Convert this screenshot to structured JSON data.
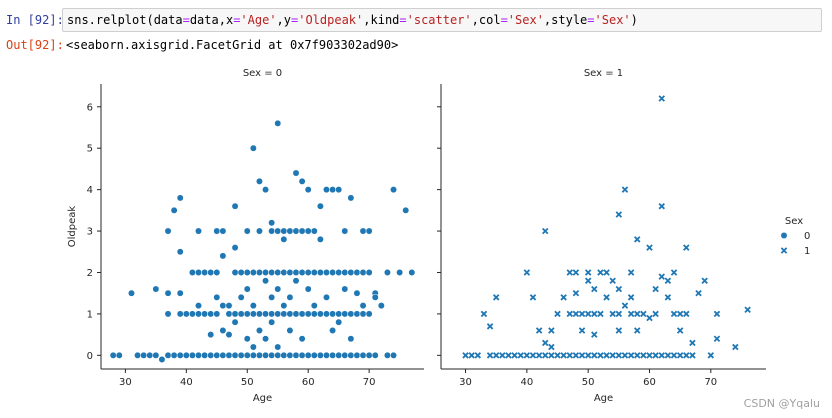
{
  "cell": {
    "in_prompt": "In [92]:",
    "code": {
      "c1": "sns.relplot(data",
      "c2": "=",
      "c3": "data,x",
      "c4": "=",
      "c5": "'Age'",
      "c6": ",y",
      "c7": "=",
      "c8": "'Oldpeak'",
      "c9": ",kind",
      "c10": "=",
      "c11": "'scatter'",
      "c12": ",col",
      "c13": "=",
      "c14": "'Sex'",
      "c15": ",style",
      "c16": "=",
      "c17": "'Sex'",
      "c18": ")"
    },
    "out_prompt": "Out[92]:",
    "output": "<seaborn.axisgrid.FacetGrid at 0x7f903302ad90>"
  },
  "watermark": "CSDN @Yqalu",
  "colors": {
    "marker": "#1f77b4",
    "in_prompt": "#303f9f",
    "out_prompt": "#d84315",
    "string": "#ba2121",
    "operator": "#aa22ff"
  },
  "chart_data": {
    "type": "scatter",
    "xlabel": "Age",
    "ylabel": "Oldpeak",
    "legend": {
      "title": "Sex",
      "placement": "right",
      "entries": [
        {
          "label": "0",
          "marker": "circle"
        },
        {
          "label": "1",
          "marker": "x"
        }
      ]
    },
    "facets": [
      {
        "title": "Sex = 0",
        "marker": "circle",
        "xlim": [
          26,
          79
        ],
        "ylim": [
          -0.33,
          6.55
        ],
        "xticks": [
          30,
          40,
          50,
          60,
          70
        ],
        "yticks": [
          0,
          1,
          2,
          3,
          4,
          5,
          6
        ],
        "points": [
          [
            28,
            0
          ],
          [
            29,
            0
          ],
          [
            31,
            1.5
          ],
          [
            32,
            0
          ],
          [
            33,
            0
          ],
          [
            34,
            0
          ],
          [
            35,
            0
          ],
          [
            35,
            1.6
          ],
          [
            36,
            -0.1
          ],
          [
            37,
            0
          ],
          [
            37,
            1
          ],
          [
            37,
            3
          ],
          [
            37,
            1.5
          ],
          [
            38,
            3.5
          ],
          [
            38,
            0
          ],
          [
            39,
            3.8
          ],
          [
            39,
            1
          ],
          [
            39,
            2.5
          ],
          [
            39,
            0
          ],
          [
            39,
            1.5
          ],
          [
            40,
            0
          ],
          [
            40,
            1
          ],
          [
            41,
            0
          ],
          [
            41,
            1
          ],
          [
            41,
            2
          ],
          [
            41,
            0
          ],
          [
            42,
            2
          ],
          [
            42,
            1
          ],
          [
            42,
            3
          ],
          [
            42,
            1.2
          ],
          [
            42,
            0
          ],
          [
            43,
            0
          ],
          [
            43,
            1
          ],
          [
            43,
            2
          ],
          [
            44,
            0
          ],
          [
            44,
            1
          ],
          [
            44,
            2
          ],
          [
            44,
            0.5
          ],
          [
            45,
            0
          ],
          [
            45,
            1
          ],
          [
            45,
            2
          ],
          [
            45,
            3
          ],
          [
            45,
            1.4
          ],
          [
            46,
            0
          ],
          [
            46,
            3
          ],
          [
            46,
            2.4
          ],
          [
            46,
            1.2
          ],
          [
            46,
            0.6
          ],
          [
            47,
            0
          ],
          [
            47,
            1.2
          ],
          [
            47,
            0.5
          ],
          [
            47,
            1
          ],
          [
            48,
            0
          ],
          [
            48,
            1
          ],
          [
            48,
            2
          ],
          [
            48,
            3.6
          ],
          [
            48,
            0.8
          ],
          [
            48,
            2.6
          ],
          [
            49,
            0
          ],
          [
            49,
            1
          ],
          [
            49,
            2
          ],
          [
            49,
            1.4
          ],
          [
            50,
            0
          ],
          [
            50,
            1
          ],
          [
            50,
            2
          ],
          [
            50,
            3
          ],
          [
            50,
            1.6
          ],
          [
            50,
            0.4
          ],
          [
            51,
            0
          ],
          [
            51,
            1
          ],
          [
            51,
            2
          ],
          [
            51,
            5
          ],
          [
            51,
            1.2
          ],
          [
            51,
            0.2
          ],
          [
            52,
            0
          ],
          [
            52,
            1
          ],
          [
            52,
            2
          ],
          [
            52,
            4.2
          ],
          [
            52,
            3
          ],
          [
            52,
            0.6
          ],
          [
            53,
            0
          ],
          [
            53,
            1
          ],
          [
            53,
            2
          ],
          [
            53,
            4
          ],
          [
            53,
            1.8
          ],
          [
            53,
            0.4
          ],
          [
            54,
            0
          ],
          [
            54,
            1
          ],
          [
            54,
            2
          ],
          [
            54,
            3
          ],
          [
            54,
            3.2
          ],
          [
            54,
            1.4
          ],
          [
            54,
            0.8
          ],
          [
            55,
            0
          ],
          [
            55,
            1
          ],
          [
            55,
            2
          ],
          [
            55,
            5.6
          ],
          [
            55,
            3
          ],
          [
            55,
            1.6
          ],
          [
            55,
            0.2
          ],
          [
            56,
            0
          ],
          [
            56,
            1
          ],
          [
            56,
            2
          ],
          [
            56,
            3
          ],
          [
            56,
            1.2
          ],
          [
            56,
            2.8
          ],
          [
            57,
            0
          ],
          [
            57,
            1
          ],
          [
            57,
            2
          ],
          [
            57,
            3
          ],
          [
            57,
            1.4
          ],
          [
            57,
            0.6
          ],
          [
            58,
            0
          ],
          [
            58,
            1
          ],
          [
            58,
            2
          ],
          [
            58,
            4.4
          ],
          [
            58,
            3
          ],
          [
            58,
            1.8
          ],
          [
            59,
            0
          ],
          [
            59,
            1
          ],
          [
            59,
            2
          ],
          [
            59,
            4.2
          ],
          [
            59,
            3
          ],
          [
            59,
            0.4
          ],
          [
            60,
            0
          ],
          [
            60,
            1
          ],
          [
            60,
            2
          ],
          [
            60,
            3
          ],
          [
            60,
            4
          ],
          [
            60,
            1.6
          ],
          [
            61,
            0
          ],
          [
            61,
            1
          ],
          [
            61,
            2
          ],
          [
            61,
            3
          ],
          [
            61,
            1.2
          ],
          [
            62,
            0
          ],
          [
            62,
            1
          ],
          [
            62,
            2
          ],
          [
            62,
            3.6
          ],
          [
            62,
            2.8
          ],
          [
            63,
            0
          ],
          [
            63,
            1
          ],
          [
            63,
            2
          ],
          [
            63,
            4
          ],
          [
            63,
            1.4
          ],
          [
            64,
            0
          ],
          [
            64,
            1
          ],
          [
            64,
            2
          ],
          [
            64,
            4
          ],
          [
            64,
            0.6
          ],
          [
            65,
            0
          ],
          [
            65,
            1
          ],
          [
            65,
            2
          ],
          [
            65,
            4
          ],
          [
            65,
            0.8
          ],
          [
            66,
            0
          ],
          [
            66,
            1
          ],
          [
            66,
            2
          ],
          [
            66,
            3
          ],
          [
            66,
            1.6
          ],
          [
            67,
            0
          ],
          [
            67,
            1
          ],
          [
            67,
            2
          ],
          [
            67,
            3.8
          ],
          [
            67,
            0.4
          ],
          [
            68,
            0
          ],
          [
            68,
            1
          ],
          [
            68,
            2
          ],
          [
            68,
            1.5
          ],
          [
            69,
            0
          ],
          [
            69,
            1
          ],
          [
            69,
            2
          ],
          [
            69,
            3
          ],
          [
            69,
            1.2
          ],
          [
            70,
            0
          ],
          [
            70,
            1
          ],
          [
            70,
            2
          ],
          [
            70,
            3
          ],
          [
            71,
            0
          ],
          [
            71,
            1.5
          ],
          [
            71,
            1.4
          ],
          [
            72,
            1.2
          ],
          [
            73,
            0
          ],
          [
            73,
            2
          ],
          [
            74,
            4
          ],
          [
            74,
            0
          ],
          [
            75,
            2
          ],
          [
            76,
            3.5
          ],
          [
            77,
            2
          ]
        ]
      },
      {
        "title": "Sex = 1",
        "marker": "x",
        "xlim": [
          26,
          79
        ],
        "ylim": [
          -0.33,
          6.55
        ],
        "xticks": [
          30,
          40,
          50,
          60,
          70
        ],
        "yticks": [
          0,
          1,
          2,
          3,
          4,
          5,
          6
        ],
        "points": [
          [
            30,
            0
          ],
          [
            31,
            0
          ],
          [
            32,
            0
          ],
          [
            33,
            1
          ],
          [
            34,
            0
          ],
          [
            34,
            0.7
          ],
          [
            35,
            0
          ],
          [
            35,
            1.4
          ],
          [
            36,
            0
          ],
          [
            37,
            0
          ],
          [
            38,
            0
          ],
          [
            39,
            0
          ],
          [
            40,
            0
          ],
          [
            40,
            2
          ],
          [
            41,
            0
          ],
          [
            41,
            1.4
          ],
          [
            42,
            0
          ],
          [
            42,
            0.6
          ],
          [
            43,
            0
          ],
          [
            43,
            3
          ],
          [
            43,
            0.3
          ],
          [
            44,
            0
          ],
          [
            44,
            0.6
          ],
          [
            44,
            0.2
          ],
          [
            45,
            0
          ],
          [
            45,
            1
          ],
          [
            46,
            0
          ],
          [
            46,
            1.4
          ],
          [
            47,
            0
          ],
          [
            47,
            1
          ],
          [
            47,
            2
          ],
          [
            48,
            0
          ],
          [
            48,
            1
          ],
          [
            48,
            2
          ],
          [
            48,
            1.5
          ],
          [
            49,
            0
          ],
          [
            49,
            1
          ],
          [
            49,
            0.6
          ],
          [
            50,
            0
          ],
          [
            50,
            1
          ],
          [
            50,
            2
          ],
          [
            50,
            1.8
          ],
          [
            51,
            0
          ],
          [
            51,
            1
          ],
          [
            51,
            1.6
          ],
          [
            51,
            0.5
          ],
          [
            52,
            0
          ],
          [
            52,
            1
          ],
          [
            52,
            2
          ],
          [
            53,
            0
          ],
          [
            53,
            2
          ],
          [
            53,
            1.4
          ],
          [
            54,
            0
          ],
          [
            54,
            1
          ],
          [
            54,
            1.8
          ],
          [
            55,
            0
          ],
          [
            55,
            1
          ],
          [
            55,
            3.4
          ],
          [
            55,
            1.6
          ],
          [
            55,
            0.6
          ],
          [
            56,
            0
          ],
          [
            56,
            4
          ],
          [
            56,
            1.2
          ],
          [
            57,
            0
          ],
          [
            57,
            1
          ],
          [
            57,
            2
          ],
          [
            57,
            1.4
          ],
          [
            58,
            0
          ],
          [
            58,
            1
          ],
          [
            58,
            2.8
          ],
          [
            58,
            0.6
          ],
          [
            59,
            0
          ],
          [
            59,
            1
          ],
          [
            60,
            0
          ],
          [
            60,
            2.6
          ],
          [
            60,
            0.9
          ],
          [
            61,
            0
          ],
          [
            61,
            1
          ],
          [
            61,
            1.6
          ],
          [
            62,
            0
          ],
          [
            62,
            6.2
          ],
          [
            62,
            3.6
          ],
          [
            62,
            1.9
          ],
          [
            63,
            0
          ],
          [
            63,
            1.8
          ],
          [
            63,
            1.4
          ],
          [
            64,
            0
          ],
          [
            64,
            2
          ],
          [
            64,
            1
          ],
          [
            65,
            0
          ],
          [
            65,
            1
          ],
          [
            65,
            0.6
          ],
          [
            66,
            0
          ],
          [
            66,
            1
          ],
          [
            66,
            2.6
          ],
          [
            67,
            0
          ],
          [
            67,
            0.3
          ],
          [
            68,
            1.5
          ],
          [
            69,
            1.8
          ],
          [
            70,
            0
          ],
          [
            71,
            1
          ],
          [
            71,
            0.4
          ],
          [
            74,
            0.2
          ],
          [
            76,
            1.1
          ]
        ]
      }
    ]
  }
}
